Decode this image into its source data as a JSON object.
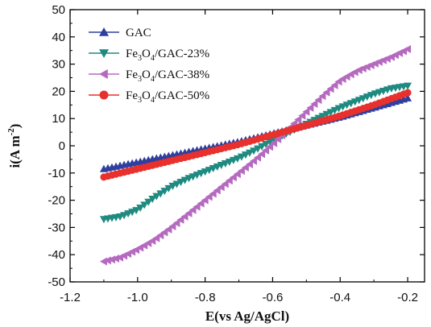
{
  "chart_data": {
    "type": "line",
    "xlabel": "E(vs Ag/AgCl)",
    "ylabel": "i(A m",
    "ylabel_sup": "-2",
    "ylabel_close": ")",
    "xlim": [
      -1.2,
      -0.15
    ],
    "ylim": [
      -50,
      50
    ],
    "xticks": [
      -1.2,
      -1.0,
      -0.8,
      -0.6,
      -0.4,
      -0.2
    ],
    "xtick_labels": [
      "-1.2",
      "-1.0",
      "-0.8",
      "-0.6",
      "-0.4",
      "-0.2"
    ],
    "yticks": [
      -50,
      -40,
      -30,
      -20,
      -10,
      0,
      10,
      20,
      30,
      40,
      50
    ],
    "ytick_labels": [
      "-50",
      "-40",
      "-30",
      "-20",
      "-10",
      "0",
      "10",
      "20",
      "30",
      "40",
      "50"
    ],
    "legend_position": "top-left",
    "series": [
      {
        "legend": [
          "GAC"
        ],
        "color": "#2f3f9e",
        "marker": "triangle-up",
        "x": [
          -1.1,
          -1.0,
          -0.9,
          -0.8,
          -0.7,
          -0.6,
          -0.5,
          -0.4,
          -0.3,
          -0.2
        ],
        "y": [
          -8.5,
          -6.0,
          -3.5,
          -1.0,
          1.5,
          4.5,
          7.5,
          10.5,
          14.0,
          17.5
        ]
      },
      {
        "legend": [
          "Fe",
          "3",
          "O",
          "4",
          "/GAC-23%"
        ],
        "color": "#1f8a80",
        "marker": "triangle-down",
        "x": [
          -1.1,
          -1.05,
          -1.0,
          -0.95,
          -0.9,
          -0.85,
          -0.8,
          -0.75,
          -0.7,
          -0.65,
          -0.6,
          -0.55,
          -0.5,
          -0.45,
          -0.4,
          -0.35,
          -0.3,
          -0.25,
          -0.2
        ],
        "y": [
          -27,
          -26,
          -23.5,
          -19,
          -15,
          -12,
          -9.5,
          -7,
          -4.5,
          -1.5,
          2,
          5,
          8,
          11,
          14,
          16.5,
          19,
          21,
          22
        ]
      },
      {
        "legend": [
          "Fe",
          "3",
          "O",
          "4",
          "/GAC-38%"
        ],
        "color": "#b56ac0",
        "marker": "triangle-left",
        "x": [
          -1.1,
          -1.05,
          -1.0,
          -0.95,
          -0.9,
          -0.85,
          -0.8,
          -0.75,
          -0.7,
          -0.65,
          -0.6,
          -0.55,
          -0.5,
          -0.45,
          -0.4,
          -0.35,
          -0.3,
          -0.25,
          -0.2
        ],
        "y": [
          -42.5,
          -41,
          -38,
          -34.5,
          -30,
          -25,
          -20,
          -15,
          -10,
          -5,
          0.5,
          6.5,
          12.5,
          18.5,
          24,
          27.5,
          30,
          32.5,
          35.5
        ]
      },
      {
        "legend": [
          "Fe",
          "3",
          "O",
          "4",
          "/GAC-50%"
        ],
        "color": "#e8302c",
        "marker": "circle",
        "x": [
          -1.1,
          -1.0,
          -0.9,
          -0.8,
          -0.7,
          -0.6,
          -0.5,
          -0.4,
          -0.3,
          -0.2
        ],
        "y": [
          -11.5,
          -8.5,
          -5.5,
          -2.5,
          0.5,
          4,
          7.5,
          11,
          15,
          19.5
        ]
      }
    ]
  }
}
